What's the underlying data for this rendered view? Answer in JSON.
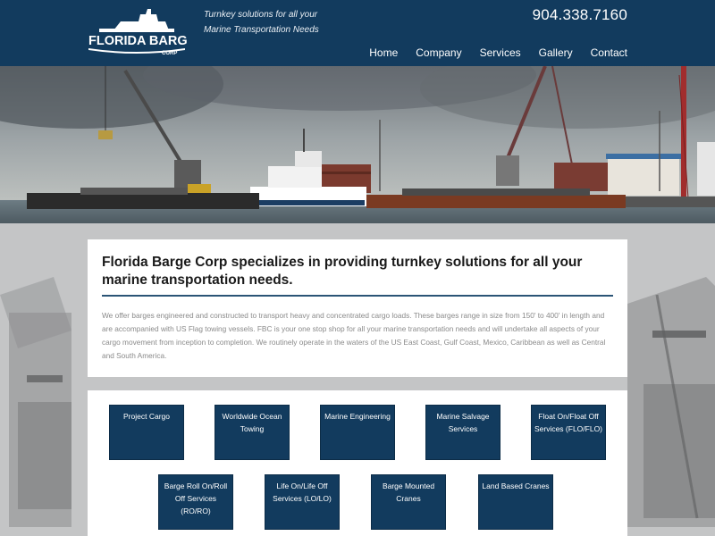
{
  "header": {
    "logo_text": "FLORIDA BARGE",
    "logo_sub": "CORP",
    "tagline": "Turnkey solutions for all your Marine Transportation Needs",
    "phone": "904.338.7160",
    "nav": [
      "Home",
      "Company",
      "Services",
      "Gallery",
      "Contact"
    ]
  },
  "intro": {
    "title": "Florida Barge Corp specializes in providing turnkey solutions for all your marine transportation needs.",
    "body": "We offer barges engineered and constructed to transport heavy and concentrated cargo loads. These barges range in size from 150' to 400' in length and are accompanied with US Flag towing vessels. FBC is your one stop shop for all your marine transportation needs and will undertake all aspects of your cargo movement from inception to completion. We routinely operate in the waters of the US East Coast, Gulf Coast, Mexico, Caribbean as well as Central and South America."
  },
  "services": {
    "row1": [
      "Project Cargo",
      "Worldwide Ocean Towing",
      "Marine Engineering",
      "Marine Salvage Services",
      "Float On/Float Off Services (FLO/FLO)"
    ],
    "row2": [
      "Barge Roll On/Roll Off Services (RO/RO)",
      "Life On/Life Off Services (LO/LO)",
      "Barge Mounted Cranes",
      "Land Based Cranes"
    ]
  },
  "colors": {
    "brand": "#123b5e",
    "accent_rule": "#2b5476"
  }
}
